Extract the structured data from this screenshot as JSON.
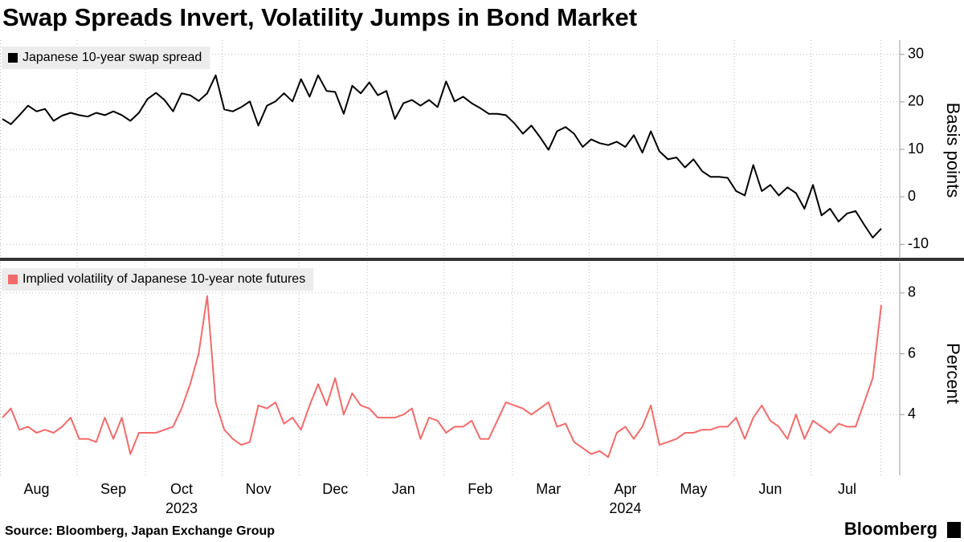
{
  "title": "Swap Spreads Invert, Volatility Jumps in Bond Market",
  "source": "Source: Bloomberg, Japan Exchange Group",
  "logo": "Bloomberg",
  "chart_data": [
    {
      "type": "line",
      "ylabel": "Basis points",
      "ylim": [
        -13,
        33
      ],
      "yticks": [
        -10,
        0,
        10,
        20,
        30
      ],
      "grid": true,
      "legend": "top-left",
      "series": [
        {
          "name": "Japanese 10-year swap spread",
          "color": "#000000",
          "values": [
            16.4,
            15.3,
            17.2,
            19.2,
            18,
            18.5,
            16,
            17.1,
            17.7,
            17.2,
            16.9,
            17.7,
            17.2,
            18,
            17.2,
            16,
            17.7,
            20.6,
            21.9,
            20.4,
            18,
            21.8,
            21.4,
            20.2,
            21.8,
            25.6,
            18.4,
            18,
            18.9,
            20.1,
            15,
            19.2,
            20.1,
            21.8,
            20.1,
            24.8,
            21.1,
            25.6,
            22.3,
            22.1,
            17.5,
            23.4,
            21.8,
            24.1,
            21.4,
            22.3,
            16.4,
            19.7,
            20.4,
            19.2,
            20.4,
            18.9,
            24.3,
            20.1,
            21.1,
            19.7,
            18.7,
            17.5,
            17.5,
            17.2,
            15.5,
            13.3,
            15,
            12.6,
            9.9,
            13.8,
            14.7,
            13.3,
            10.5,
            12.1,
            11.3,
            10.9,
            11.6,
            10.5,
            13,
            9.3,
            13.8,
            9.6,
            7.9,
            8.3,
            6.2,
            7.9,
            5.4,
            4.2,
            4.2,
            4,
            1.2,
            0.3,
            6.7,
            1.2,
            2.5,
            0.3,
            2,
            0.8,
            -2.5,
            2.5,
            -3.9,
            -2.5,
            -5.2,
            -3.5,
            -3,
            -5.9,
            -8.6,
            -6.7
          ]
        }
      ]
    },
    {
      "type": "line",
      "ylabel": "Percent",
      "ylim": [
        2,
        9
      ],
      "yticks": [
        4,
        6,
        8
      ],
      "grid": true,
      "legend": "top-left",
      "categories": [
        null,
        null,
        null,
        null,
        "Aug",
        null,
        null,
        null,
        null,
        null,
        null,
        null,
        null,
        "Sep",
        null,
        null,
        null,
        null,
        null,
        null,
        null,
        "Oct",
        null,
        null,
        null,
        null,
        null,
        null,
        null,
        null,
        "Nov",
        null,
        null,
        null,
        null,
        null,
        null,
        null,
        null,
        "Dec",
        null,
        null,
        null,
        null,
        null,
        null,
        null,
        "Jan",
        null,
        null,
        null,
        null,
        null,
        null,
        null,
        null,
        "Feb",
        null,
        null,
        null,
        null,
        null,
        null,
        null,
        "Mar",
        null,
        null,
        null,
        null,
        null,
        null,
        null,
        null,
        "Apr",
        null,
        null,
        null,
        null,
        null,
        null,
        null,
        "May",
        null,
        null,
        null,
        null,
        null,
        null,
        null,
        null,
        "Jun",
        null,
        null,
        null,
        null,
        null,
        null,
        null,
        null,
        "Jul",
        null,
        null,
        null,
        null
      ],
      "year_labels": [
        null,
        null,
        null,
        null,
        null,
        null,
        null,
        null,
        null,
        null,
        null,
        null,
        null,
        null,
        null,
        null,
        null,
        null,
        null,
        null,
        null,
        "2023",
        null,
        null,
        null,
        null,
        null,
        null,
        null,
        null,
        null,
        null,
        null,
        null,
        null,
        null,
        null,
        null,
        null,
        null,
        null,
        null,
        null,
        null,
        null,
        null,
        null,
        null,
        null,
        null,
        null,
        null,
        null,
        null,
        null,
        null,
        null,
        null,
        null,
        null,
        null,
        null,
        null,
        null,
        null,
        null,
        null,
        null,
        null,
        null,
        null,
        null,
        null,
        "2024",
        null,
        null,
        null,
        null,
        null,
        null,
        null,
        null,
        null,
        null,
        null,
        null,
        null,
        null,
        null,
        null,
        null,
        null,
        null,
        null,
        null,
        null,
        null,
        null,
        null,
        null,
        null,
        null
      ],
      "series": [
        {
          "name": "Implied volatility of Japanese 10-year note futures",
          "color": "#f26b6b",
          "values": [
            3.9,
            4.2,
            3.5,
            3.6,
            3.4,
            3.5,
            3.4,
            3.6,
            3.9,
            3.2,
            3.2,
            3.1,
            3.9,
            3.2,
            3.9,
            2.7,
            3.4,
            3.4,
            3.4,
            3.5,
            3.6,
            4.2,
            5,
            6,
            7.9,
            4.4,
            3.5,
            3.2,
            3,
            3.1,
            4.3,
            4.2,
            4.4,
            3.7,
            3.9,
            3.5,
            4.3,
            5,
            4.3,
            5.2,
            4,
            4.7,
            4.3,
            4.2,
            3.9,
            3.9,
            3.9,
            4,
            4.2,
            3.2,
            3.9,
            3.8,
            3.4,
            3.6,
            3.6,
            3.8,
            3.2,
            3.2,
            3.8,
            4.4,
            4.3,
            4.2,
            4,
            4.2,
            4.4,
            3.6,
            3.7,
            3.1,
            2.9,
            2.7,
            2.8,
            2.6,
            3.4,
            3.6,
            3.2,
            3.6,
            4.3,
            3,
            3.1,
            3.2,
            3.4,
            3.4,
            3.5,
            3.5,
            3.6,
            3.6,
            3.9,
            3.2,
            3.9,
            4.3,
            3.8,
            3.6,
            3.2,
            4,
            3.2,
            3.8,
            3.6,
            3.4,
            3.7,
            3.6,
            3.6,
            4.4,
            5.2,
            7.6
          ]
        }
      ]
    }
  ]
}
